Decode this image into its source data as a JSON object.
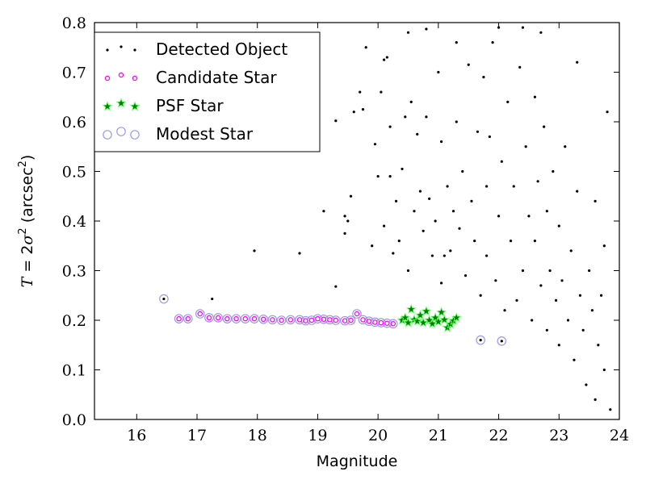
{
  "chart_data": {
    "type": "scatter",
    "xlabel": "Magnitude",
    "ylabel_parts": [
      "T",
      " = 2",
      "σ",
      "2",
      " (arcsec",
      "2",
      ")"
    ],
    "xlim": [
      15.3,
      24.0
    ],
    "ylim": [
      0.0,
      0.8
    ],
    "xticks": [
      16,
      17,
      18,
      19,
      20,
      21,
      22,
      23,
      24
    ],
    "yticks": [
      0.0,
      0.1,
      0.2,
      0.3,
      0.4,
      0.5,
      0.6,
      0.7,
      0.8
    ],
    "grid": false,
    "legend_position": "top-left",
    "colors": {
      "detected": "#000000",
      "candidate": "#ff00ff",
      "psf_fill": "#008000",
      "psf_edge": "#66ff66",
      "modest": "#9999ee"
    },
    "series": [
      {
        "name": "Detected Object",
        "marker": "dot",
        "values": [
          [
            16.45,
            0.243
          ],
          [
            17.25,
            0.243
          ],
          [
            17.95,
            0.34
          ],
          [
            18.7,
            0.335
          ],
          [
            19.1,
            0.42
          ],
          [
            19.3,
            0.268
          ],
          [
            19.3,
            0.602
          ],
          [
            19.45,
            0.375
          ],
          [
            19.45,
            0.41
          ],
          [
            19.5,
            0.4
          ],
          [
            19.55,
            0.45
          ],
          [
            19.6,
            0.62
          ],
          [
            19.7,
            0.66
          ],
          [
            19.75,
            0.625
          ],
          [
            19.8,
            0.75
          ],
          [
            19.9,
            0.35
          ],
          [
            19.95,
            0.555
          ],
          [
            20.0,
            0.49
          ],
          [
            20.05,
            0.66
          ],
          [
            20.1,
            0.39
          ],
          [
            20.1,
            0.725
          ],
          [
            20.15,
            0.73
          ],
          [
            20.2,
            0.49
          ],
          [
            20.2,
            0.59
          ],
          [
            20.3,
            0.44
          ],
          [
            20.35,
            0.36
          ],
          [
            20.4,
            0.505
          ],
          [
            20.45,
            0.61
          ],
          [
            20.5,
            0.78
          ],
          [
            20.55,
            0.64
          ],
          [
            20.6,
            0.42
          ],
          [
            20.65,
            0.575
          ],
          [
            20.7,
            0.46
          ],
          [
            20.75,
            0.38
          ],
          [
            20.8,
            0.61
          ],
          [
            20.8,
            0.787
          ],
          [
            20.85,
            0.445
          ],
          [
            20.9,
            0.33
          ],
          [
            20.95,
            0.4
          ],
          [
            21.0,
            0.7
          ],
          [
            21.05,
            0.56
          ],
          [
            21.05,
            0.275
          ],
          [
            21.1,
            0.33
          ],
          [
            21.15,
            0.47
          ],
          [
            21.2,
            0.34
          ],
          [
            21.25,
            0.42
          ],
          [
            21.3,
            0.6
          ],
          [
            21.3,
            0.76
          ],
          [
            21.35,
            0.385
          ],
          [
            21.4,
            0.5
          ],
          [
            21.45,
            0.29
          ],
          [
            21.5,
            0.715
          ],
          [
            21.55,
            0.44
          ],
          [
            21.6,
            0.36
          ],
          [
            21.65,
            0.58
          ],
          [
            21.7,
            0.25
          ],
          [
            21.75,
            0.69
          ],
          [
            21.8,
            0.47
          ],
          [
            21.8,
            0.33
          ],
          [
            21.85,
            0.57
          ],
          [
            21.9,
            0.76
          ],
          [
            21.95,
            0.28
          ],
          [
            22.0,
            0.79
          ],
          [
            22.0,
            0.41
          ],
          [
            22.05,
            0.52
          ],
          [
            22.1,
            0.22
          ],
          [
            22.15,
            0.64
          ],
          [
            22.2,
            0.36
          ],
          [
            22.25,
            0.47
          ],
          [
            22.3,
            0.24
          ],
          [
            22.35,
            0.71
          ],
          [
            22.4,
            0.3
          ],
          [
            22.45,
            0.55
          ],
          [
            22.5,
            0.41
          ],
          [
            22.55,
            0.2
          ],
          [
            22.6,
            0.65
          ],
          [
            22.6,
            0.36
          ],
          [
            22.65,
            0.48
          ],
          [
            22.7,
            0.27
          ],
          [
            22.75,
            0.59
          ],
          [
            22.8,
            0.42
          ],
          [
            22.8,
            0.18
          ],
          [
            22.85,
            0.3
          ],
          [
            22.9,
            0.5
          ],
          [
            22.95,
            0.24
          ],
          [
            23.0,
            0.39
          ],
          [
            23.0,
            0.15
          ],
          [
            23.05,
            0.28
          ],
          [
            23.1,
            0.55
          ],
          [
            23.15,
            0.2
          ],
          [
            23.2,
            0.34
          ],
          [
            23.25,
            0.12
          ],
          [
            23.3,
            0.46
          ],
          [
            23.35,
            0.25
          ],
          [
            23.4,
            0.18
          ],
          [
            23.45,
            0.07
          ],
          [
            23.5,
            0.3
          ],
          [
            23.55,
            0.22
          ],
          [
            23.6,
            0.04
          ],
          [
            23.65,
            0.15
          ],
          [
            23.7,
            0.25
          ],
          [
            23.75,
            0.1
          ],
          [
            23.8,
            0.62
          ],
          [
            23.85,
            0.02
          ],
          [
            22.4,
            0.79
          ],
          [
            22.7,
            0.78
          ],
          [
            23.3,
            0.72
          ],
          [
            23.6,
            0.44
          ],
          [
            23.75,
            0.35
          ],
          [
            21.7,
            0.16
          ],
          [
            22.05,
            0.158
          ],
          [
            20.5,
            0.3
          ],
          [
            20.25,
            0.335
          ]
        ]
      },
      {
        "name": "Candidate Star",
        "marker": "circle",
        "values": [
          [
            16.7,
            0.203
          ],
          [
            16.85,
            0.203
          ],
          [
            17.05,
            0.213
          ],
          [
            17.2,
            0.205
          ],
          [
            17.35,
            0.205
          ],
          [
            17.5,
            0.203
          ],
          [
            17.65,
            0.203
          ],
          [
            17.8,
            0.203
          ],
          [
            17.95,
            0.203
          ],
          [
            18.1,
            0.202
          ],
          [
            18.25,
            0.201
          ],
          [
            18.4,
            0.2
          ],
          [
            18.55,
            0.201
          ],
          [
            18.7,
            0.201
          ],
          [
            18.8,
            0.199
          ],
          [
            18.9,
            0.2
          ],
          [
            19.0,
            0.203
          ],
          [
            19.1,
            0.202
          ],
          [
            19.2,
            0.201
          ],
          [
            19.3,
            0.2
          ],
          [
            19.45,
            0.199
          ],
          [
            19.55,
            0.2
          ],
          [
            19.65,
            0.213
          ],
          [
            19.75,
            0.201
          ],
          [
            19.85,
            0.198
          ],
          [
            19.95,
            0.196
          ],
          [
            20.05,
            0.195
          ],
          [
            20.15,
            0.194
          ],
          [
            20.25,
            0.193
          ]
        ]
      },
      {
        "name": "PSF Star",
        "marker": "star",
        "values": [
          [
            20.4,
            0.2
          ],
          [
            20.45,
            0.205
          ],
          [
            20.5,
            0.195
          ],
          [
            20.55,
            0.222
          ],
          [
            20.6,
            0.201
          ],
          [
            20.65,
            0.198
          ],
          [
            20.7,
            0.21
          ],
          [
            20.75,
            0.195
          ],
          [
            20.8,
            0.218
          ],
          [
            20.85,
            0.2
          ],
          [
            20.9,
            0.193
          ],
          [
            20.95,
            0.205
          ],
          [
            21.0,
            0.197
          ],
          [
            21.05,
            0.216
          ],
          [
            21.1,
            0.201
          ],
          [
            21.15,
            0.185
          ],
          [
            21.2,
            0.192
          ],
          [
            21.25,
            0.199
          ],
          [
            21.3,
            0.205
          ]
        ]
      },
      {
        "name": "Modest Star",
        "marker": "ring",
        "values": [
          [
            16.45,
            0.243
          ],
          [
            16.7,
            0.203
          ],
          [
            16.85,
            0.203
          ],
          [
            17.05,
            0.213
          ],
          [
            17.2,
            0.205
          ],
          [
            17.35,
            0.205
          ],
          [
            17.5,
            0.203
          ],
          [
            17.65,
            0.203
          ],
          [
            17.8,
            0.203
          ],
          [
            17.95,
            0.203
          ],
          [
            18.1,
            0.202
          ],
          [
            18.25,
            0.201
          ],
          [
            18.4,
            0.2
          ],
          [
            18.55,
            0.201
          ],
          [
            18.7,
            0.201
          ],
          [
            18.8,
            0.199
          ],
          [
            18.9,
            0.2
          ],
          [
            19.0,
            0.203
          ],
          [
            19.1,
            0.202
          ],
          [
            19.2,
            0.201
          ],
          [
            19.3,
            0.2
          ],
          [
            19.45,
            0.199
          ],
          [
            19.55,
            0.2
          ],
          [
            19.65,
            0.213
          ],
          [
            19.75,
            0.201
          ],
          [
            19.85,
            0.198
          ],
          [
            19.95,
            0.196
          ],
          [
            20.05,
            0.195
          ],
          [
            20.15,
            0.194
          ],
          [
            20.25,
            0.193
          ],
          [
            21.7,
            0.16
          ],
          [
            22.05,
            0.158
          ]
        ]
      }
    ]
  }
}
